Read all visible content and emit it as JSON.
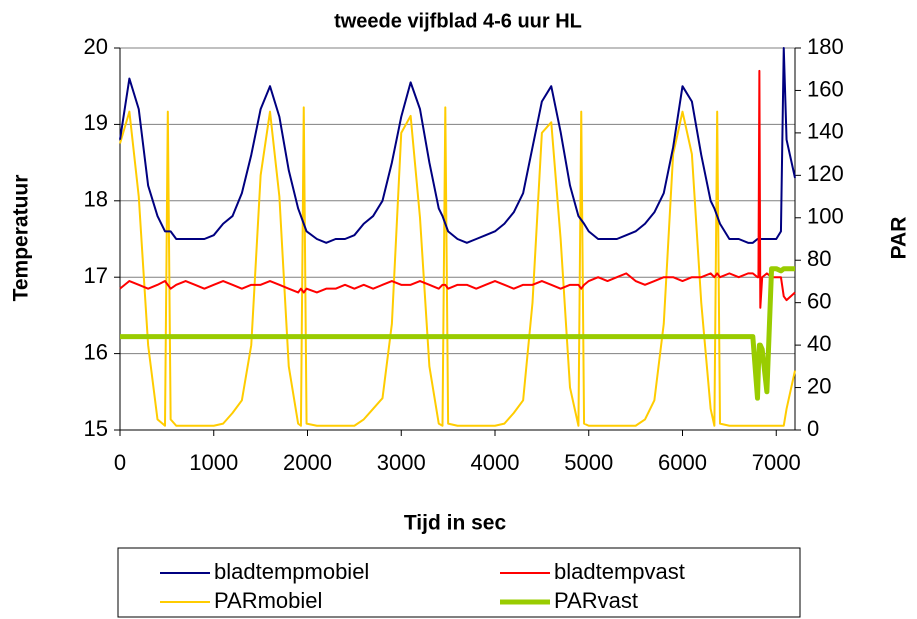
{
  "chart_data": {
    "type": "line",
    "title": "tweede vijfblad 4-6 uur HL",
    "x_label": "Tijd in sec",
    "y_label": "Temperatuur",
    "y2_label": "PAR",
    "xlim": [
      0,
      7200
    ],
    "xticks": [
      0,
      1000,
      2000,
      3000,
      4000,
      5000,
      6000,
      7000
    ],
    "ylim": [
      15,
      20
    ],
    "yticks": [
      15,
      16,
      17,
      18,
      19,
      20
    ],
    "y2lim": [
      0,
      180
    ],
    "y2ticks": [
      0,
      20,
      40,
      60,
      80,
      100,
      120,
      140,
      160,
      180
    ],
    "grid": true,
    "legend": "bottom",
    "x": [
      0,
      100,
      200,
      300,
      400,
      480,
      510,
      540,
      600,
      700,
      800,
      900,
      1000,
      1100,
      1200,
      1300,
      1400,
      1500,
      1600,
      1700,
      1800,
      1900,
      1930,
      1960,
      1990,
      2100,
      2200,
      2300,
      2400,
      2500,
      2600,
      2700,
      2800,
      2900,
      3000,
      3100,
      3200,
      3300,
      3400,
      3440,
      3470,
      3500,
      3600,
      3700,
      3800,
      3900,
      4000,
      4100,
      4200,
      4300,
      4400,
      4500,
      4600,
      4700,
      4800,
      4890,
      4920,
      4950,
      5000,
      5100,
      5200,
      5300,
      5400,
      5500,
      5600,
      5700,
      5800,
      5900,
      6000,
      6100,
      6200,
      6300,
      6340,
      6370,
      6400,
      6500,
      6600,
      6700,
      6750,
      6800,
      6810,
      6820,
      6830,
      6850,
      6900,
      6950,
      7000,
      7050,
      7080,
      7110,
      7200
    ],
    "series": [
      {
        "name": "bladtempmobiel",
        "color": "#000080",
        "width": 2,
        "values": [
          18.8,
          19.6,
          19.2,
          18.2,
          17.8,
          17.6,
          17.6,
          17.6,
          17.5,
          17.5,
          17.5,
          17.5,
          17.55,
          17.7,
          17.8,
          18.1,
          18.6,
          19.2,
          19.5,
          19.1,
          18.4,
          17.9,
          17.8,
          17.7,
          17.6,
          17.5,
          17.45,
          17.5,
          17.5,
          17.55,
          17.7,
          17.8,
          18.0,
          18.5,
          19.1,
          19.55,
          19.2,
          18.5,
          17.9,
          17.8,
          17.7,
          17.6,
          17.5,
          17.45,
          17.5,
          17.55,
          17.6,
          17.7,
          17.85,
          18.1,
          18.7,
          19.3,
          19.5,
          18.9,
          18.2,
          17.8,
          17.75,
          17.7,
          17.6,
          17.5,
          17.5,
          17.5,
          17.55,
          17.6,
          17.7,
          17.85,
          18.1,
          18.7,
          19.5,
          19.3,
          18.6,
          18.0,
          17.9,
          17.8,
          17.7,
          17.5,
          17.5,
          17.45,
          17.45,
          17.5,
          17.5,
          17.5,
          17.5,
          17.5,
          17.5,
          17.5,
          17.5,
          17.6,
          20,
          18.8,
          18.3
        ]
      },
      {
        "name": "bladtempvast",
        "color": "#ff0000",
        "width": 2,
        "values": [
          16.85,
          16.95,
          16.9,
          16.85,
          16.9,
          16.95,
          16.9,
          16.85,
          16.9,
          16.95,
          16.9,
          16.85,
          16.9,
          16.95,
          16.9,
          16.85,
          16.9,
          16.9,
          16.95,
          16.9,
          16.85,
          16.8,
          16.85,
          16.8,
          16.85,
          16.8,
          16.85,
          16.85,
          16.9,
          16.85,
          16.9,
          16.85,
          16.9,
          16.95,
          16.9,
          16.9,
          16.95,
          16.9,
          16.85,
          16.9,
          16.9,
          16.85,
          16.9,
          16.9,
          16.85,
          16.9,
          16.95,
          16.9,
          16.85,
          16.9,
          16.9,
          16.95,
          16.9,
          16.85,
          16.9,
          16.9,
          16.85,
          16.9,
          16.95,
          17.0,
          16.95,
          17.0,
          17.05,
          16.95,
          16.9,
          16.95,
          17.0,
          17.0,
          16.95,
          17.0,
          17.0,
          17.05,
          17.0,
          17.05,
          17.0,
          17.05,
          17.0,
          17.05,
          17.05,
          17.0,
          17.0,
          19.7,
          16.6,
          17.0,
          17.05,
          17.0,
          17.0,
          17.0,
          16.75,
          16.7,
          16.8
        ]
      },
      {
        "name": "PARmobiel",
        "color": "#ffcc00",
        "width": 2,
        "axis": "y2",
        "values": [
          135,
          150,
          110,
          40,
          5,
          2,
          150,
          5,
          2,
          2,
          2,
          2,
          2,
          3,
          8,
          14,
          40,
          120,
          150,
          110,
          30,
          3,
          2,
          152,
          3,
          2,
          2,
          2,
          2,
          2,
          5,
          10,
          15,
          50,
          140,
          148,
          100,
          30,
          3,
          2,
          152,
          3,
          2,
          2,
          2,
          2,
          2,
          3,
          8,
          14,
          60,
          140,
          145,
          90,
          20,
          2,
          150,
          3,
          2,
          2,
          2,
          2,
          2,
          2,
          5,
          14,
          50,
          130,
          150,
          130,
          60,
          10,
          2,
          150,
          3,
          2,
          2,
          2,
          2,
          2,
          2,
          2,
          2,
          2,
          2,
          2,
          2,
          2,
          2,
          10,
          28
        ]
      },
      {
        "name": "PARvast",
        "color": "#99cc00",
        "width": 5,
        "axis": "y2",
        "values": [
          44,
          44,
          44,
          44,
          44,
          44,
          44,
          44,
          44,
          44,
          44,
          44,
          44,
          44,
          44,
          44,
          44,
          44,
          44,
          44,
          44,
          44,
          44,
          44,
          44,
          44,
          44,
          44,
          44,
          44,
          44,
          44,
          44,
          44,
          44,
          44,
          44,
          44,
          44,
          44,
          44,
          44,
          44,
          44,
          44,
          44,
          44,
          44,
          44,
          44,
          44,
          44,
          44,
          44,
          44,
          44,
          44,
          44,
          44,
          44,
          44,
          44,
          44,
          44,
          44,
          44,
          44,
          44,
          44,
          44,
          44,
          44,
          44,
          44,
          44,
          44,
          44,
          44,
          44,
          15,
          30,
          40,
          40,
          38,
          18,
          76,
          76,
          75,
          76,
          76,
          76
        ]
      }
    ]
  }
}
